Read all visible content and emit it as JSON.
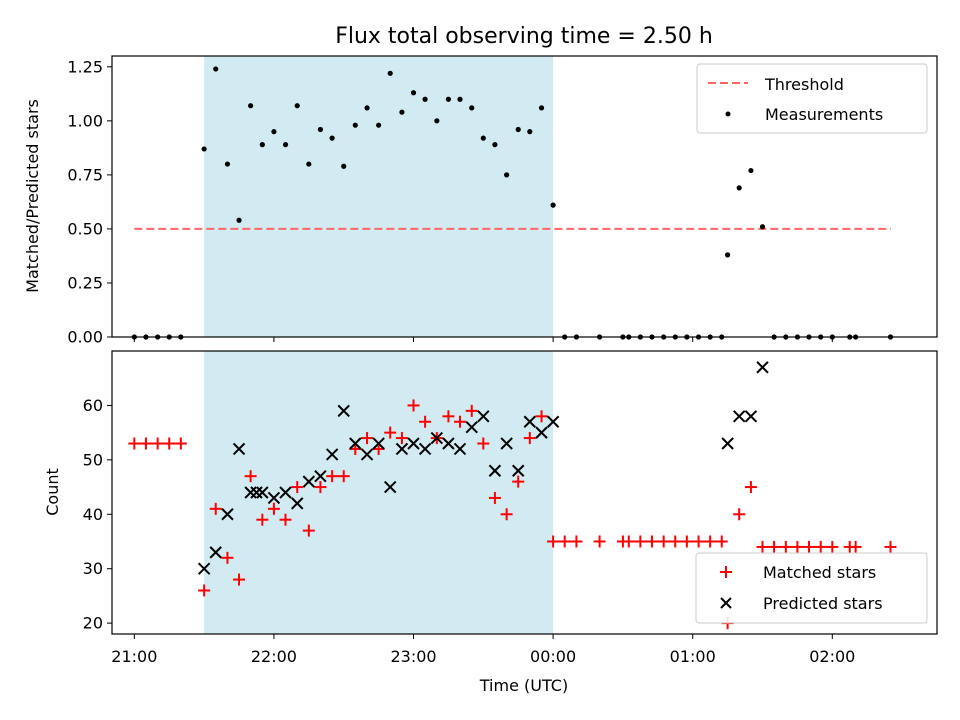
{
  "chart_data": [
    {
      "type": "scatter",
      "title": "Flux total observing time = 2.50 h",
      "ylabel": "Matched/Predicted stars",
      "xlabel": "",
      "xlim": [
        -0.16,
        5.75
      ],
      "ylim": [
        0,
        1.3
      ],
      "yticks": [
        "0.00",
        "0.25",
        "0.50",
        "0.75",
        "1.00",
        "1.25"
      ],
      "ytick_values": [
        0,
        0.25,
        0.5,
        0.75,
        1.0,
        1.25
      ],
      "highlight": {
        "x0": 0.5,
        "x1": 3.0,
        "color": "#add8e6"
      },
      "threshold": {
        "name": "Threshold",
        "value": 0.5,
        "x_range": [
          0.0,
          5.42
        ],
        "color": "#ff6666"
      },
      "legend": "top-right",
      "series": [
        {
          "name": "Measurements",
          "color": "#000000",
          "marker": "dot",
          "points": [
            [
              0.0,
              0
            ],
            [
              0.083,
              0
            ],
            [
              0.167,
              0
            ],
            [
              0.25,
              0
            ],
            [
              0.333,
              0
            ],
            [
              0.5,
              0.87
            ],
            [
              0.583,
              1.24
            ],
            [
              0.667,
              0.8
            ],
            [
              0.75,
              0.54
            ],
            [
              0.833,
              1.07
            ],
            [
              0.917,
              0.89
            ],
            [
              1.0,
              0.95
            ],
            [
              1.083,
              0.89
            ],
            [
              1.167,
              1.07
            ],
            [
              1.25,
              0.8
            ],
            [
              1.333,
              0.96
            ],
            [
              1.417,
              0.92
            ],
            [
              1.5,
              0.79
            ],
            [
              1.583,
              0.98
            ],
            [
              1.667,
              1.06
            ],
            [
              1.75,
              0.98
            ],
            [
              1.833,
              1.22
            ],
            [
              1.917,
              1.04
            ],
            [
              2.0,
              1.13
            ],
            [
              2.083,
              1.1
            ],
            [
              2.167,
              1.0
            ],
            [
              2.25,
              1.1
            ],
            [
              2.333,
              1.1
            ],
            [
              2.417,
              1.06
            ],
            [
              2.5,
              0.92
            ],
            [
              2.583,
              0.89
            ],
            [
              2.667,
              0.75
            ],
            [
              2.75,
              0.96
            ],
            [
              2.833,
              0.95
            ],
            [
              2.917,
              1.06
            ],
            [
              3.0,
              0.61
            ],
            [
              3.083,
              0
            ],
            [
              3.167,
              0
            ],
            [
              3.333,
              0
            ],
            [
              3.5,
              0
            ],
            [
              3.542,
              0
            ],
            [
              3.625,
              0
            ],
            [
              3.708,
              0
            ],
            [
              3.792,
              0
            ],
            [
              3.875,
              0
            ],
            [
              3.958,
              0
            ],
            [
              4.042,
              0
            ],
            [
              4.125,
              0
            ],
            [
              4.208,
              0
            ],
            [
              4.25,
              0.38
            ],
            [
              4.333,
              0.69
            ],
            [
              4.417,
              0.77
            ],
            [
              4.5,
              0.51
            ],
            [
              4.583,
              0
            ],
            [
              4.667,
              0
            ],
            [
              4.75,
              0
            ],
            [
              4.833,
              0
            ],
            [
              4.917,
              0
            ],
            [
              5.0,
              0
            ],
            [
              5.125,
              0
            ],
            [
              5.167,
              0
            ],
            [
              5.417,
              0
            ]
          ]
        }
      ]
    },
    {
      "type": "scatter",
      "title": "",
      "ylabel": "Count",
      "xlabel": "Time (UTC)",
      "xlim": [
        -0.16,
        5.75
      ],
      "ylim": [
        18,
        70
      ],
      "yticks": [
        "20",
        "30",
        "40",
        "50",
        "60"
      ],
      "ytick_values": [
        20,
        30,
        40,
        50,
        60
      ],
      "xticks": [
        "21:00",
        "22:00",
        "23:00",
        "00:00",
        "01:00",
        "02:00"
      ],
      "xtick_values": [
        0,
        1,
        2,
        3,
        4,
        5
      ],
      "highlight": {
        "x0": 0.5,
        "x1": 3.0,
        "color": "#add8e6"
      },
      "legend": "bottom-right",
      "series": [
        {
          "name": "Matched stars",
          "color": "#ff0000",
          "marker": "plus",
          "points": [
            [
              0.0,
              53
            ],
            [
              0.083,
              53
            ],
            [
              0.167,
              53
            ],
            [
              0.25,
              53
            ],
            [
              0.333,
              53
            ],
            [
              0.5,
              26
            ],
            [
              0.583,
              41
            ],
            [
              0.667,
              32
            ],
            [
              0.75,
              28
            ],
            [
              0.833,
              47
            ],
            [
              0.917,
              39
            ],
            [
              1.0,
              41
            ],
            [
              1.083,
              39
            ],
            [
              1.167,
              45
            ],
            [
              1.25,
              37
            ],
            [
              1.333,
              45
            ],
            [
              1.417,
              47
            ],
            [
              1.5,
              47
            ],
            [
              1.583,
              52
            ],
            [
              1.667,
              54
            ],
            [
              1.75,
              52
            ],
            [
              1.833,
              55
            ],
            [
              1.917,
              54
            ],
            [
              2.0,
              60
            ],
            [
              2.083,
              57
            ],
            [
              2.167,
              54
            ],
            [
              2.25,
              58
            ],
            [
              2.333,
              57
            ],
            [
              2.417,
              59
            ],
            [
              2.5,
              53
            ],
            [
              2.583,
              43
            ],
            [
              2.667,
              40
            ],
            [
              2.75,
              46
            ],
            [
              2.833,
              54
            ],
            [
              2.917,
              58
            ],
            [
              3.0,
              35
            ],
            [
              3.083,
              35
            ],
            [
              3.167,
              35
            ],
            [
              3.333,
              35
            ],
            [
              3.5,
              35
            ],
            [
              3.542,
              35
            ],
            [
              3.625,
              35
            ],
            [
              3.708,
              35
            ],
            [
              3.792,
              35
            ],
            [
              3.875,
              35
            ],
            [
              3.958,
              35
            ],
            [
              4.042,
              35
            ],
            [
              4.125,
              35
            ],
            [
              4.208,
              35
            ],
            [
              4.25,
              20
            ],
            [
              4.333,
              40
            ],
            [
              4.417,
              45
            ],
            [
              4.5,
              34
            ],
            [
              4.583,
              34
            ],
            [
              4.667,
              34
            ],
            [
              4.75,
              34
            ],
            [
              4.833,
              34
            ],
            [
              4.917,
              34
            ],
            [
              5.0,
              34
            ],
            [
              5.125,
              34
            ],
            [
              5.167,
              34
            ],
            [
              5.417,
              34
            ]
          ]
        },
        {
          "name": "Predicted stars",
          "color": "#000000",
          "marker": "x",
          "points": [
            [
              0.5,
              30
            ],
            [
              0.583,
              33
            ],
            [
              0.667,
              40
            ],
            [
              0.75,
              52
            ],
            [
              0.833,
              44
            ],
            [
              0.875,
              44
            ],
            [
              0.917,
              44
            ],
            [
              1.0,
              43
            ],
            [
              1.083,
              44
            ],
            [
              1.167,
              42
            ],
            [
              1.25,
              46
            ],
            [
              1.333,
              47
            ],
            [
              1.417,
              51
            ],
            [
              1.5,
              59
            ],
            [
              1.583,
              53
            ],
            [
              1.667,
              51
            ],
            [
              1.75,
              53
            ],
            [
              1.833,
              45
            ],
            [
              1.917,
              52
            ],
            [
              2.0,
              53
            ],
            [
              2.083,
              52
            ],
            [
              2.167,
              54
            ],
            [
              2.25,
              53
            ],
            [
              2.333,
              52
            ],
            [
              2.417,
              56
            ],
            [
              2.5,
              58
            ],
            [
              2.583,
              48
            ],
            [
              2.667,
              53
            ],
            [
              2.75,
              48
            ],
            [
              2.833,
              57
            ],
            [
              2.917,
              55
            ],
            [
              3.0,
              57
            ],
            [
              4.25,
              53
            ],
            [
              4.333,
              58
            ],
            [
              4.417,
              58
            ],
            [
              4.5,
              67
            ]
          ]
        }
      ]
    }
  ]
}
